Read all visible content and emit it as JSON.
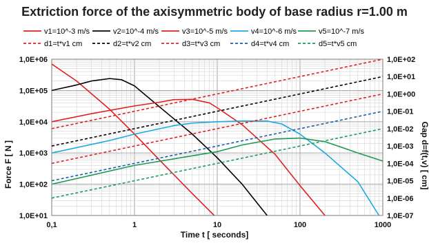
{
  "chart_data": {
    "type": "line",
    "title": "Extriction force of the axisymmetric body of base radius r=1.00 m",
    "xlabel": "Time t [ seconds]",
    "ylabel": "Force  F [ N ]",
    "y2label": "Gap d=f(t,v) [ cm]",
    "xscale": "log",
    "yscale": "log",
    "y2scale": "log",
    "xlim": [
      0.1,
      1000
    ],
    "ylim": [
      10,
      1000000
    ],
    "y2lim": [
      1e-07,
      100
    ],
    "x_tick_labels": [
      "0,1",
      "1",
      "10",
      "100",
      "1000"
    ],
    "y_tick_labels": [
      "1,0E+01",
      "1,0E+02",
      "1,0E+03",
      "1,0E+04",
      "1,0E+05",
      "1,0E+06"
    ],
    "y2_tick_labels": [
      "1,0E-07",
      "1,0E-06",
      "1,0E-05",
      "1,0E-04",
      "1,0E-03",
      "1,0E-02",
      "1,0E-01",
      "1,0E+00",
      "1,0E+01",
      "1,0E+02"
    ],
    "grid": true,
    "legend_position": "top",
    "series": [
      {
        "name": "v1=10^-3 m/s",
        "axis": "left",
        "color": "#e02020",
        "dash": "solid",
        "x": [
          0.1,
          0.2,
          0.5,
          1,
          2,
          5,
          10
        ],
        "y": [
          700000,
          200000,
          25000,
          4000,
          600,
          50,
          8
        ]
      },
      {
        "name": "v2=10^-4 m/s",
        "axis": "left",
        "color": "#000000",
        "dash": "solid",
        "x": [
          0.1,
          0.2,
          0.3,
          0.5,
          0.7,
          1,
          2,
          5,
          10,
          20,
          40
        ],
        "y": [
          100000,
          150000,
          200000,
          240000,
          220000,
          140000,
          30000,
          4000,
          700,
          100,
          10
        ]
      },
      {
        "name": "v3=10^-5 m/s",
        "axis": "left",
        "color": "#e02020",
        "dash": "solid",
        "x": [
          0.1,
          0.3,
          1,
          2,
          3,
          5,
          8,
          10,
          20,
          50,
          100,
          200
        ],
        "y": [
          10000,
          18000,
          32000,
          42000,
          51000,
          52000,
          40000,
          28000,
          8000,
          900,
          90,
          10
        ]
      },
      {
        "name": "v4=10^-6 m/s",
        "axis": "left",
        "color": "#19a9e0",
        "dash": "solid",
        "x": [
          0.1,
          0.5,
          1,
          3,
          5,
          10,
          20,
          40,
          60,
          100,
          200,
          500,
          900
        ],
        "y": [
          1000,
          2500,
          4000,
          7500,
          9000,
          10000,
          10500,
          10500,
          8500,
          4000,
          1000,
          120,
          10
        ]
      },
      {
        "name": "v5=10^-7 m/s",
        "axis": "left",
        "color": "#1d9a55",
        "dash": "solid",
        "x": [
          0.1,
          1,
          10,
          20,
          50,
          100,
          200,
          300,
          500,
          1000
        ],
        "y": [
          100,
          400,
          1100,
          1800,
          2800,
          3000,
          2300,
          1600,
          1000,
          550
        ]
      },
      {
        "name": "d1=t*v1 cm",
        "axis": "right",
        "color": "#e02020",
        "dash": "dashed",
        "x": [
          0.1,
          1000
        ],
        "y": [
          0.01,
          100
        ]
      },
      {
        "name": "d2=t*v2 cm",
        "axis": "right",
        "color": "#000000",
        "dash": "dashed",
        "x": [
          0.1,
          1000
        ],
        "y": [
          0.001,
          10
        ]
      },
      {
        "name": "d3=t*v3 cm",
        "axis": "right",
        "color": "#e02020",
        "dash": "dashed",
        "x": [
          0.1,
          1000
        ],
        "y": [
          0.0001,
          1
        ]
      },
      {
        "name": "d4=t*v4 cm",
        "axis": "right",
        "color": "#1a5fa8",
        "dash": "dashed",
        "x": [
          0.1,
          1000
        ],
        "y": [
          1e-05,
          0.1
        ]
      },
      {
        "name": "d5=t*v5 cm",
        "axis": "right",
        "color": "#1d9a55",
        "dash": "dashed",
        "x": [
          0.1,
          1000
        ],
        "y": [
          1e-06,
          0.01
        ]
      }
    ]
  }
}
